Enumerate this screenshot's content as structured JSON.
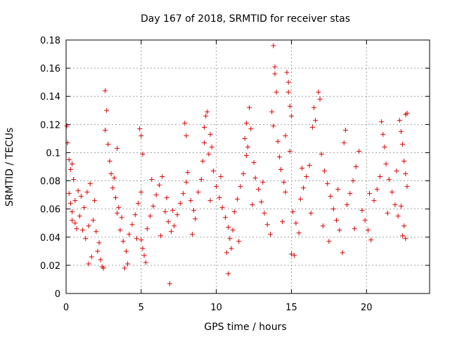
{
  "chart_data": {
    "type": "scatter",
    "title": "Day 167 of 2018, SRMTID for receiver stas",
    "xlabel": "GPS time / hours",
    "ylabel": "SRMTID / TECUs",
    "xlim": [
      0,
      24.2
    ],
    "ylim": [
      0,
      0.18
    ],
    "xticks": [
      0,
      5,
      10,
      15,
      20
    ],
    "xtick_labels": [
      "0",
      "5",
      "10",
      "15",
      "20"
    ],
    "yticks": [
      0,
      0.02,
      0.04,
      0.06,
      0.08,
      0.1,
      0.12,
      0.14,
      0.16,
      0.18
    ],
    "ytick_labels": [
      "0",
      "0.02",
      "0.04",
      "0.06",
      "0.08",
      "0.1",
      "0.12",
      "0.14",
      "0.16",
      "0.18"
    ],
    "grid": true,
    "marker": "+",
    "color": "#e00000",
    "series": [
      {
        "name": "SRMTID",
        "points": [
          [
            0.05,
            0.119
          ],
          [
            0.1,
            0.107
          ],
          [
            0.2,
            0.095
          ],
          [
            0.3,
            0.088
          ],
          [
            0.4,
            0.092
          ],
          [
            0.5,
            0.081
          ],
          [
            0.2,
            0.071
          ],
          [
            0.3,
            0.064
          ],
          [
            0.4,
            0.058
          ],
          [
            0.6,
            0.066
          ],
          [
            0.8,
            0.073
          ],
          [
            1.0,
            0.069
          ],
          [
            0.6,
            0.05
          ],
          [
            0.7,
            0.046
          ],
          [
            0.9,
            0.055
          ],
          [
            1.2,
            0.061
          ],
          [
            1.4,
            0.072
          ],
          [
            1.6,
            0.078
          ],
          [
            1.1,
            0.045
          ],
          [
            1.3,
            0.039
          ],
          [
            1.5,
            0.048
          ],
          [
            1.8,
            0.052
          ],
          [
            2.0,
            0.044
          ],
          [
            2.2,
            0.036
          ],
          [
            1.5,
            0.021
          ],
          [
            1.7,
            0.026
          ],
          [
            2.1,
            0.03
          ],
          [
            2.3,
            0.024
          ],
          [
            2.4,
            0.019
          ],
          [
            2.5,
            0.018
          ],
          [
            2.6,
            0.144
          ],
          [
            2.7,
            0.13
          ],
          [
            2.6,
            0.116
          ],
          [
            2.8,
            0.106
          ],
          [
            2.9,
            0.094
          ],
          [
            3.0,
            0.085
          ],
          [
            3.2,
            0.082
          ],
          [
            3.4,
            0.103
          ],
          [
            3.1,
            0.075
          ],
          [
            3.3,
            0.068
          ],
          [
            3.5,
            0.061
          ],
          [
            3.7,
            0.054
          ],
          [
            3.6,
            0.045
          ],
          [
            3.8,
            0.037
          ],
          [
            4.0,
            0.03
          ],
          [
            4.1,
            0.021
          ],
          [
            3.9,
            0.018
          ],
          [
            4.2,
            0.042
          ],
          [
            4.4,
            0.049
          ],
          [
            4.6,
            0.056
          ],
          [
            4.8,
            0.064
          ],
          [
            5.0,
            0.072
          ],
          [
            4.9,
            0.117
          ],
          [
            5.0,
            0.112
          ],
          [
            5.1,
            0.099
          ],
          [
            5.0,
            0.038
          ],
          [
            5.1,
            0.032
          ],
          [
            5.2,
            0.027
          ],
          [
            5.3,
            0.022
          ],
          [
            5.4,
            0.046
          ],
          [
            5.6,
            0.055
          ],
          [
            5.8,
            0.062
          ],
          [
            6.0,
            0.07
          ],
          [
            6.2,
            0.077
          ],
          [
            6.4,
            0.083
          ],
          [
            6.6,
            0.058
          ],
          [
            6.8,
            0.051
          ],
          [
            7.0,
            0.044
          ],
          [
            6.9,
            0.007
          ],
          [
            7.2,
            0.048
          ],
          [
            7.4,
            0.056
          ],
          [
            7.6,
            0.064
          ],
          [
            7.8,
            0.071
          ],
          [
            8.0,
            0.079
          ],
          [
            8.1,
            0.086
          ],
          [
            8.3,
            0.066
          ],
          [
            8.5,
            0.059
          ],
          [
            7.9,
            0.121
          ],
          [
            8.0,
            0.112
          ],
          [
            8.6,
            0.053
          ],
          [
            8.8,
            0.072
          ],
          [
            9.0,
            0.081
          ],
          [
            9.1,
            0.094
          ],
          [
            9.2,
            0.107
          ],
          [
            9.3,
            0.126
          ],
          [
            9.4,
            0.129
          ],
          [
            9.2,
            0.118
          ],
          [
            9.5,
            0.099
          ],
          [
            9.6,
            0.113
          ],
          [
            9.7,
            0.104
          ],
          [
            9.8,
            0.087
          ],
          [
            10.0,
            0.076
          ],
          [
            10.2,
            0.068
          ],
          [
            10.4,
            0.061
          ],
          [
            10.6,
            0.054
          ],
          [
            10.8,
            0.047
          ],
          [
            10.9,
            0.039
          ],
          [
            11.0,
            0.032
          ],
          [
            11.1,
            0.045
          ],
          [
            10.7,
            0.029
          ],
          [
            10.8,
            0.014
          ],
          [
            11.2,
            0.058
          ],
          [
            11.4,
            0.067
          ],
          [
            11.6,
            0.076
          ],
          [
            11.8,
            0.085
          ],
          [
            12.0,
            0.098
          ],
          [
            11.9,
            0.11
          ],
          [
            12.0,
            0.121
          ],
          [
            12.2,
            0.132
          ],
          [
            12.3,
            0.117
          ],
          [
            12.1,
            0.104
          ],
          [
            12.5,
            0.093
          ],
          [
            12.6,
            0.082
          ],
          [
            12.8,
            0.074
          ],
          [
            13.0,
            0.065
          ],
          [
            13.2,
            0.057
          ],
          [
            13.4,
            0.049
          ],
          [
            13.6,
            0.042
          ],
          [
            13.8,
            0.176
          ],
          [
            13.9,
            0.161
          ],
          [
            13.9,
            0.156
          ],
          [
            14.0,
            0.143
          ],
          [
            13.7,
            0.129
          ],
          [
            13.8,
            0.119
          ],
          [
            14.1,
            0.108
          ],
          [
            14.2,
            0.097
          ],
          [
            14.3,
            0.088
          ],
          [
            14.5,
            0.079
          ],
          [
            14.6,
            0.072
          ],
          [
            14.7,
            0.157
          ],
          [
            14.8,
            0.15
          ],
          [
            14.8,
            0.143
          ],
          [
            14.9,
            0.133
          ],
          [
            15.0,
            0.126
          ],
          [
            14.6,
            0.112
          ],
          [
            14.9,
            0.101
          ],
          [
            15.1,
            0.058
          ],
          [
            15.3,
            0.05
          ],
          [
            15.5,
            0.043
          ],
          [
            15.2,
            0.027
          ],
          [
            15.0,
            0.028
          ],
          [
            15.6,
            0.067
          ],
          [
            15.8,
            0.075
          ],
          [
            16.0,
            0.083
          ],
          [
            16.2,
            0.091
          ],
          [
            16.4,
            0.118
          ],
          [
            16.5,
            0.132
          ],
          [
            16.6,
            0.123
          ],
          [
            16.8,
            0.143
          ],
          [
            16.9,
            0.138
          ],
          [
            17.0,
            0.099
          ],
          [
            17.2,
            0.087
          ],
          [
            17.4,
            0.078
          ],
          [
            17.6,
            0.069
          ],
          [
            17.8,
            0.06
          ],
          [
            18.0,
            0.052
          ],
          [
            18.2,
            0.045
          ],
          [
            18.4,
            0.029
          ],
          [
            17.5,
            0.037
          ],
          [
            18.5,
            0.107
          ],
          [
            18.6,
            0.116
          ],
          [
            18.7,
            0.063
          ],
          [
            18.9,
            0.071
          ],
          [
            19.1,
            0.08
          ],
          [
            19.3,
            0.09
          ],
          [
            19.5,
            0.101
          ],
          [
            19.7,
            0.059
          ],
          [
            19.9,
            0.052
          ],
          [
            20.1,
            0.045
          ],
          [
            20.3,
            0.038
          ],
          [
            20.5,
            0.066
          ],
          [
            20.7,
            0.074
          ],
          [
            20.9,
            0.083
          ],
          [
            21.0,
            0.122
          ],
          [
            21.1,
            0.113
          ],
          [
            21.2,
            0.104
          ],
          [
            21.3,
            0.092
          ],
          [
            21.5,
            0.081
          ],
          [
            21.7,
            0.072
          ],
          [
            21.9,
            0.063
          ],
          [
            22.1,
            0.055
          ],
          [
            22.2,
            0.123
          ],
          [
            22.3,
            0.115
          ],
          [
            22.4,
            0.106
          ],
          [
            22.5,
            0.094
          ],
          [
            22.6,
            0.127
          ],
          [
            22.7,
            0.128
          ],
          [
            22.6,
            0.085
          ],
          [
            22.7,
            0.076
          ],
          [
            22.5,
            0.048
          ],
          [
            22.6,
            0.039
          ],
          [
            22.4,
            0.041
          ],
          [
            0.4,
            0.052
          ],
          [
            1.9,
            0.066
          ],
          [
            3.4,
            0.057
          ],
          [
            4.7,
            0.039
          ],
          [
            6.3,
            0.041
          ],
          [
            7.1,
            0.059
          ],
          [
            8.4,
            0.042
          ],
          [
            9.6,
            0.066
          ],
          [
            10.3,
            0.083
          ],
          [
            11.5,
            0.037
          ],
          [
            12.4,
            0.063
          ],
          [
            13.1,
            0.079
          ],
          [
            14.4,
            0.051
          ],
          [
            15.7,
            0.089
          ],
          [
            16.3,
            0.057
          ],
          [
            17.1,
            0.048
          ],
          [
            18.1,
            0.074
          ],
          [
            19.2,
            0.046
          ],
          [
            20.2,
            0.071
          ],
          [
            21.4,
            0.057
          ],
          [
            22.0,
            0.087
          ],
          [
            22.3,
            0.062
          ],
          [
            5.7,
            0.081
          ],
          [
            6.7,
            0.068
          ]
        ]
      }
    ]
  }
}
